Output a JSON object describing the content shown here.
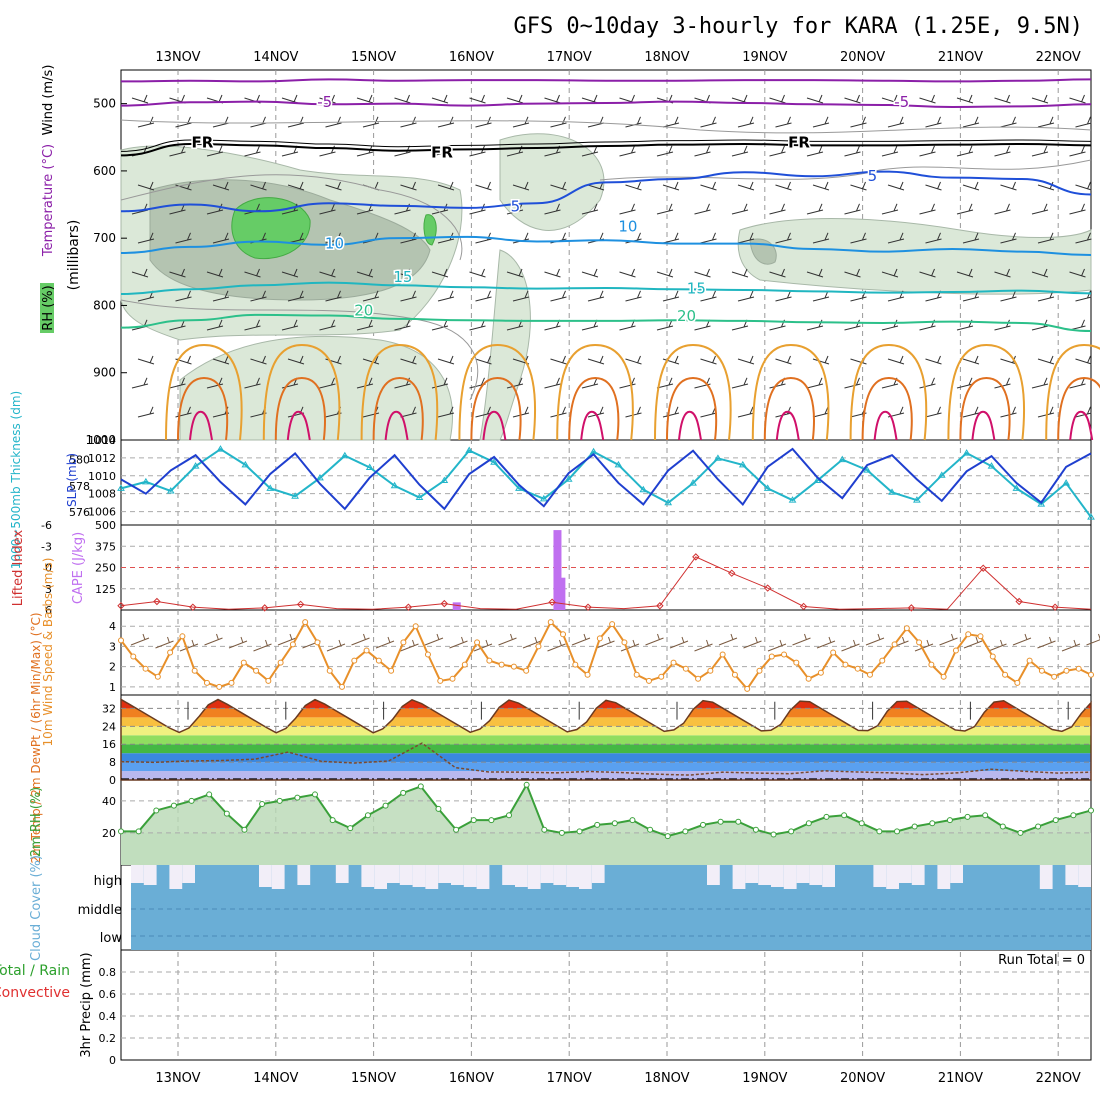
{
  "title": "GFS 0~10day 3-hourly for KARA (1.25E, 9.5N)",
  "dates": [
    "13NOV",
    "14NOV",
    "15NOV",
    "16NOV",
    "17NOV",
    "18NOV",
    "19NOV",
    "20NOV",
    "21NOV",
    "22NOV"
  ],
  "colors": {
    "purple": "#8b1fa8",
    "black": "#000000",
    "blue": "#1f4fd8",
    "lightblue": "#1e90e0",
    "teal": "#20b6c0",
    "green": "#2cc08a",
    "orange": "#e8a030",
    "darkorange": "#e07020",
    "magenta": "#d0106a",
    "thickness": "#23b5c9",
    "slp": "#1f3fcf",
    "li": "#d03030",
    "cape": "#c070f0",
    "wind": "#e8902a",
    "rh": "#3aa03a",
    "cloud": "#6aaed6"
  },
  "chart_data": [
    {
      "panel": "upper-air",
      "type": "contour",
      "ylabel_left": [
        "Wind (m/s)",
        "Temperature (°C)",
        "RH (%)"
      ],
      "ylabel_mb": "(millibars)",
      "y_ticks": [
        "500",
        "600",
        "700",
        "800",
        "900",
        "1000"
      ],
      "ylim": [
        1000,
        450
      ],
      "isotherm_labels": [
        {
          "text": "-5",
          "mb": 505,
          "day": 1.5
        },
        {
          "text": "-5",
          "mb": 505,
          "day": 7.4
        },
        {
          "text": "FR",
          "mb": 565,
          "day": 0.25
        },
        {
          "text": "FR",
          "mb": 580,
          "day": 2.7
        },
        {
          "text": "FR",
          "mb": 565,
          "day": 6.35
        },
        {
          "text": "5",
          "mb": 660,
          "day": 3.45
        },
        {
          "text": "5",
          "mb": 615,
          "day": 7.1
        },
        {
          "text": "10",
          "mb": 715,
          "day": 1.6
        },
        {
          "text": "10",
          "mb": 690,
          "day": 4.6
        },
        {
          "text": "15",
          "mb": 765,
          "day": 2.3
        },
        {
          "text": "15",
          "mb": 782,
          "day": 5.3
        },
        {
          "text": "20",
          "mb": 815,
          "day": 1.9
        },
        {
          "text": "20",
          "mb": 823,
          "day": 5.2
        }
      ],
      "isotherms": [
        {
          "name": "-5",
          "color": "purple",
          "values": [
            467,
            466,
            467,
            464,
            466,
            465,
            465,
            466,
            466,
            465,
            465,
            466,
            467,
            466,
            464
          ]
        },
        {
          "name": "-5b",
          "color": "purple",
          "values": [
            503,
            498,
            497,
            501,
            500,
            503,
            500,
            499,
            497,
            499,
            501,
            502,
            505,
            504,
            501
          ]
        },
        {
          "name": "0",
          "color": "black",
          "values": [
            577,
            560,
            562,
            566,
            570,
            568,
            566,
            563,
            561,
            560,
            562,
            562,
            561,
            560,
            562
          ]
        },
        {
          "name": "5",
          "color": "blue",
          "values": [
            660,
            650,
            660,
            648,
            652,
            655,
            648,
            617,
            612,
            602,
            608,
            601,
            610,
            612,
            635
          ]
        },
        {
          "name": "10",
          "color": "lightblue",
          "values": [
            722,
            713,
            705,
            710,
            700,
            698,
            705,
            703,
            708,
            708,
            716,
            720,
            716,
            720,
            725
          ]
        },
        {
          "name": "15",
          "color": "teal",
          "values": [
            783,
            776,
            770,
            766,
            770,
            773,
            775,
            774,
            776,
            777,
            779,
            781,
            780,
            778,
            782
          ]
        },
        {
          "name": "20",
          "color": "green",
          "values": [
            833,
            822,
            814,
            815,
            820,
            822,
            823,
            823,
            822,
            823,
            825,
            826,
            824,
            826,
            838
          ]
        }
      ]
    },
    {
      "panel": "thickness-slp",
      "type": "line",
      "ylabel_left": "1000~500mb Thickness (dm)",
      "ylabel_right": "SLP (mb)",
      "y_ticks_left": [
        "576",
        "578",
        "580"
      ],
      "y_ticks_right": [
        "1006",
        "1008",
        "1010",
        "1012"
      ],
      "y_top": "1014",
      "series": [
        {
          "name": "SLP (mb)",
          "color": "slp",
          "values": [
            1009.6,
            1008,
            1010.6,
            1012.3,
            1009.3,
            1006.8,
            1010.2,
            1012.5,
            1009.1,
            1006.3,
            1009.8,
            1012.3,
            1009,
            1006.3,
            1010.2,
            1012.1,
            1009,
            1006.6,
            1010.3,
            1012.4,
            1009.2,
            1006.8,
            1010.6,
            1012.8,
            1009.6,
            1006.8,
            1011,
            1013,
            1009.8,
            1007.5,
            1011.2,
            1012.3,
            1009.6,
            1007.2,
            1010.5,
            1012.2,
            1009.2,
            1007,
            1011,
            1012.5
          ]
        },
        {
          "name": "Thickness (dm)",
          "color": "thickness",
          "values": [
            577.8,
            578.3,
            577.6,
            579.5,
            580.8,
            579.6,
            577.8,
            577.2,
            578.6,
            580.3,
            579.4,
            578,
            577.1,
            578.4,
            580.7,
            579.8,
            577.8,
            577,
            578.5,
            580.6,
            579.6,
            577.7,
            576.7,
            578.2,
            580.1,
            579.6,
            577.8,
            576.9,
            578.4,
            580,
            579.2,
            577.5,
            576.9,
            578.8,
            580.5,
            579.5,
            577.8,
            576.6,
            578.2,
            575.6
          ]
        }
      ]
    },
    {
      "panel": "lifted-cape",
      "type": "bar+line",
      "ylabel_left": "Lifted Index",
      "ylabel_right": "CAPE (J/kg)",
      "y_ticks_left": [
        "-6",
        "-3",
        "0",
        "3",
        "6"
      ],
      "y_ticks_right": [
        "125",
        "250",
        "375",
        "500"
      ],
      "cape_bars": [
        {
          "day": 2.85,
          "value": 45
        },
        {
          "day": 3.88,
          "value": 470
        },
        {
          "day": 3.92,
          "value": 190
        }
      ],
      "lifted_index": [
        5.4,
        4.8,
        5.6,
        5.9,
        5.7,
        5.2,
        5.8,
        5.9,
        5.6,
        5.1,
        5.8,
        5.9,
        4.9,
        5.6,
        5.8,
        5.4,
        -1.5,
        0.8,
        2.9,
        5.5,
        5.9,
        5.8,
        5.7,
        5.9,
        0.1,
        4.8,
        5.6,
        5.9
      ]
    },
    {
      "panel": "wind10m",
      "type": "line",
      "ylabel_left": "10m Wind Speed & Barbs (m/s)",
      "y_ticks": [
        "1",
        "2",
        "3",
        "4"
      ],
      "ylim": [
        0.6,
        4.8
      ],
      "values": [
        3.3,
        2.5,
        1.9,
        1.5,
        2.7,
        3.5,
        1.8,
        1.2,
        1,
        1.2,
        2.2,
        1.8,
        1.3,
        2.2,
        3.1,
        4.2,
        3.2,
        1.8,
        1,
        2.3,
        2.8,
        2.3,
        1.8,
        3.2,
        4,
        2.6,
        1.3,
        1.4,
        2.1,
        3.2,
        2.3,
        2.1,
        2,
        1.8,
        3,
        4.2,
        3.6,
        2.1,
        1.6,
        3.4,
        4.1,
        3.2,
        1.6,
        1.3,
        1.5,
        2.2,
        1.9,
        1.4,
        1.8,
        2.6,
        1.6,
        0.9,
        1.8,
        2.5,
        2.6,
        2.2,
        1.4,
        1.7,
        2.7,
        2.1,
        1.9,
        1.6,
        2.3,
        3.1,
        3.9,
        3.2,
        2.1,
        1.5,
        2.8,
        3.6,
        3.5,
        2.5,
        1.6,
        1.2,
        2.3,
        1.8,
        1.5,
        1.8,
        1.9,
        1.6
      ]
    },
    {
      "panel": "temp2m",
      "type": "area",
      "ylabel_left": "2m Temp / 2m DewPt / (6hr Min/Max) (°C)",
      "y_ticks": [
        "0",
        "8",
        "16",
        "24",
        "32"
      ],
      "ylim": [
        0,
        38
      ],
      "temp_max": [
        36,
        36,
        36,
        36,
        36,
        36,
        36,
        36,
        36,
        36
      ],
      "dewpoint": [
        8.2,
        7.9,
        8.5,
        8.7,
        9.3,
        12.5,
        8.3,
        7.6,
        8.5,
        16.5,
        5.5,
        3.6,
        3.5,
        3.2,
        3.8,
        3.3,
        2.6,
        2.2,
        3.5,
        3.1,
        2.8,
        4.1,
        3.6,
        3.2,
        2.4,
        3.2,
        4.8,
        3.9,
        3.1,
        3.5
      ]
    },
    {
      "panel": "rh2m",
      "type": "area",
      "ylabel_left": "2m RH (%)",
      "y_ticks": [
        "20",
        "40"
      ],
      "ylim": [
        0,
        53
      ],
      "values": [
        21,
        21,
        34,
        37,
        40,
        44,
        32,
        22,
        38,
        40,
        42,
        44,
        28,
        23,
        31,
        37,
        45,
        49,
        35,
        22,
        28,
        28,
        31,
        50,
        22,
        20,
        21,
        25,
        26,
        28,
        22,
        18,
        21,
        25,
        27,
        27,
        22,
        19,
        21,
        26,
        30,
        31,
        26,
        21,
        21,
        24,
        26,
        28,
        30,
        31,
        24,
        20,
        24,
        28,
        31,
        34
      ]
    },
    {
      "panel": "cloud",
      "type": "bar",
      "ylabel_left": "Cloud Cover (%)",
      "y_ticks": [
        "low",
        "middle",
        "high"
      ],
      "high_cloud_gaps": [
        1,
        1,
        0,
        1,
        1,
        0,
        0,
        0,
        0,
        0,
        1,
        1,
        0,
        1,
        0,
        0,
        1,
        0,
        1,
        1,
        1,
        1,
        1,
        1,
        1,
        1,
        1,
        1,
        0,
        1,
        1,
        1,
        1,
        1,
        1,
        1,
        1,
        0,
        0,
        0,
        0,
        0,
        0,
        0,
        0,
        1,
        0,
        1,
        1,
        1,
        1,
        1,
        1,
        1,
        1,
        0,
        0,
        0,
        1,
        1,
        1,
        1,
        0,
        1,
        1,
        0,
        0,
        0,
        0,
        0,
        0,
        1,
        0,
        1,
        1
      ]
    },
    {
      "panel": "precip",
      "type": "bar",
      "ylabel_left": "3hr Precip (mm)",
      "legend": [
        "Total / Rain",
        "Convective"
      ],
      "y_ticks": [
        "0",
        "0.2",
        "0.4",
        "0.6",
        "0.8"
      ],
      "ylim": [
        0,
        1
      ],
      "run_total_label": "Run Total = 0",
      "values": []
    }
  ]
}
